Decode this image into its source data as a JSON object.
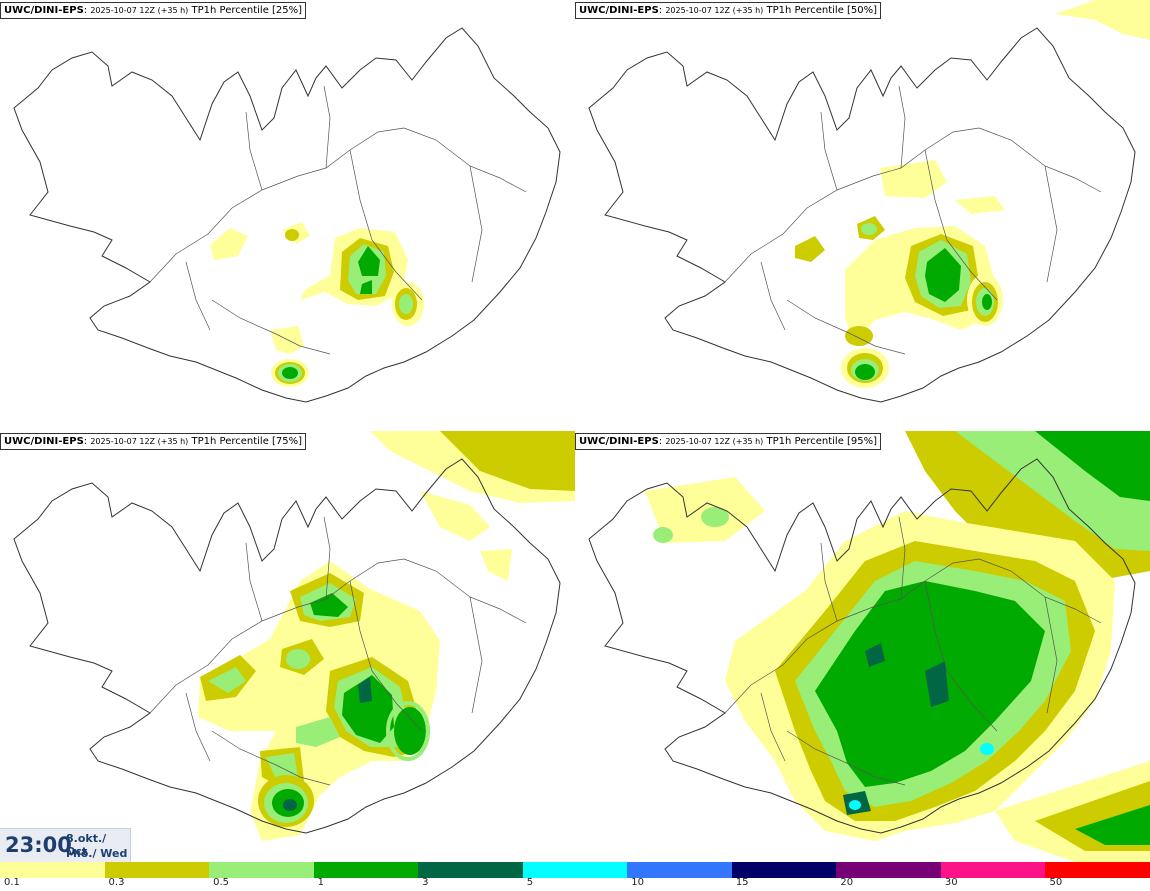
{
  "panels": [
    {
      "model": "UWC/DINI-EPS",
      "run": "2025-10-07 12Z (+35 h)",
      "field": "TP1h Percentile [25%]"
    },
    {
      "model": "UWC/DINI-EPS",
      "run": "2025-10-07 12Z (+35 h)",
      "field": "TP1h Percentile [50%]"
    },
    {
      "model": "UWC/DINI-EPS",
      "run": "2025-10-07 12Z (+35 h)",
      "field": "TP1h Percentile [75%]"
    },
    {
      "model": "UWC/DINI-EPS",
      "run": "2025-10-07 12Z (+35 h)",
      "field": "TP1h Percentile [95%]"
    }
  ],
  "valid_time": {
    "clock": "23:00",
    "date_is": "8.okt./ Oct",
    "day": "Mið./ Wed"
  },
  "legend": {
    "ticks": [
      "0.1",
      "0.3",
      "0.5",
      "1",
      "3",
      "5",
      "10",
      "15",
      "20",
      "30",
      "50"
    ],
    "colors": [
      "#ffff99",
      "#cccc00",
      "#99ee77",
      "#00aa00",
      "#006644",
      "#00ffff",
      "#3377ff",
      "#000066",
      "#770077",
      "#ff1188",
      "#ff0000"
    ]
  }
}
